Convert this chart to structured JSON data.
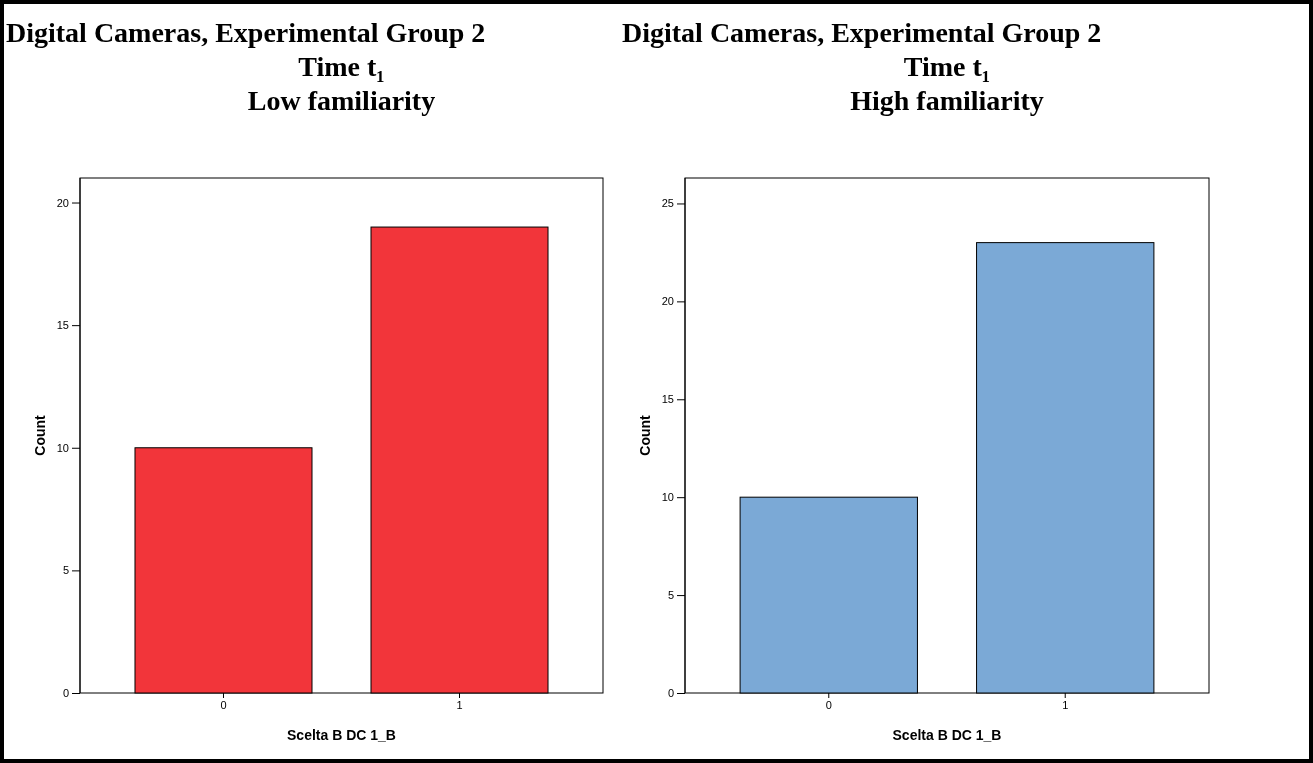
{
  "chart_data": [
    {
      "type": "bar",
      "title": "Digital Cameras, Experimental Group 2\nTime t₁\nLow familiarity",
      "xlabel": "Scelta B DC 1_B",
      "ylabel": "Count",
      "categories": [
        "0",
        "1"
      ],
      "values": [
        10,
        19
      ],
      "color": "#f2353a",
      "ylim": [
        0,
        21
      ],
      "yticks": [
        0,
        5,
        10,
        15,
        20
      ],
      "grid": false,
      "legend": false
    },
    {
      "type": "bar",
      "title": "Digital Cameras, Experimental Group 2\nTime t₁\nHigh familiarity",
      "xlabel": "Scelta B DC 1_B",
      "ylabel": "Count",
      "categories": [
        "0",
        "1"
      ],
      "values": [
        10,
        23
      ],
      "color": "#7ba9d6",
      "ylim": [
        0,
        26.3
      ],
      "yticks": [
        0,
        5,
        10,
        15,
        20,
        25
      ],
      "grid": false,
      "legend": false
    }
  ]
}
